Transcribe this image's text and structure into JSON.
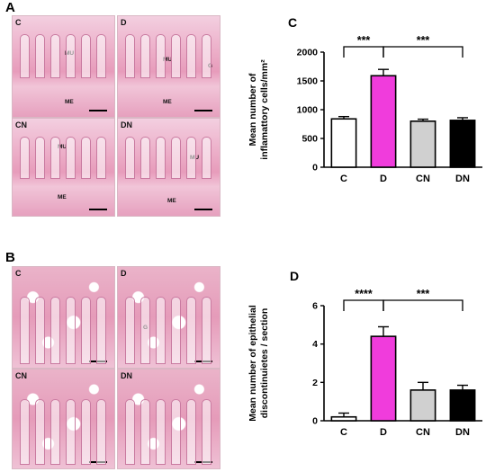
{
  "panels": {
    "A": {
      "letter": "A",
      "images": [
        {
          "label": "C",
          "tags": [
            "MU",
            "ME"
          ]
        },
        {
          "label": "D",
          "tags": [
            "MU",
            "ME",
            "G"
          ]
        },
        {
          "label": "CN",
          "tags": [
            "MU",
            "ME"
          ]
        },
        {
          "label": "DN",
          "tags": [
            "MU",
            "ME"
          ]
        }
      ]
    },
    "B": {
      "letter": "B",
      "images": [
        {
          "label": "C"
        },
        {
          "label": "D",
          "tags": [
            "G"
          ]
        },
        {
          "label": "CN"
        },
        {
          "label": "DN"
        }
      ]
    }
  },
  "colors": {
    "C": "#ffffff",
    "D": "#f03cdc",
    "CN": "#d0d0d0",
    "DN": "#000000"
  },
  "chart_data": [
    {
      "panel": "C",
      "type": "bar",
      "ylabel_line1": "Mean number of",
      "ylabel_line2": "inflamattory cells/mm²",
      "categories": [
        "C",
        "D",
        "CN",
        "DN"
      ],
      "values": [
        840,
        1590,
        800,
        815
      ],
      "errors": [
        40,
        110,
        35,
        45
      ],
      "ylim": [
        0,
        2000
      ],
      "yticks": [
        0,
        500,
        1000,
        1500,
        2000
      ],
      "significance": [
        {
          "from": 0,
          "to": 1,
          "label": "***"
        },
        {
          "from": 1,
          "to": 3,
          "label": "***"
        }
      ]
    },
    {
      "panel": "D",
      "type": "bar",
      "ylabel_line1": "Mean number of  epithelial",
      "ylabel_line2": "discontinuietes / section",
      "categories": [
        "C",
        "D",
        "CN",
        "DN"
      ],
      "values": [
        0.2,
        4.4,
        1.6,
        1.6
      ],
      "errors": [
        0.2,
        0.5,
        0.4,
        0.25
      ],
      "ylim": [
        0,
        6
      ],
      "yticks": [
        0,
        2,
        4,
        6
      ],
      "significance": [
        {
          "from": 0,
          "to": 1,
          "label": "****"
        },
        {
          "from": 1,
          "to": 3,
          "label": "***"
        }
      ]
    }
  ]
}
